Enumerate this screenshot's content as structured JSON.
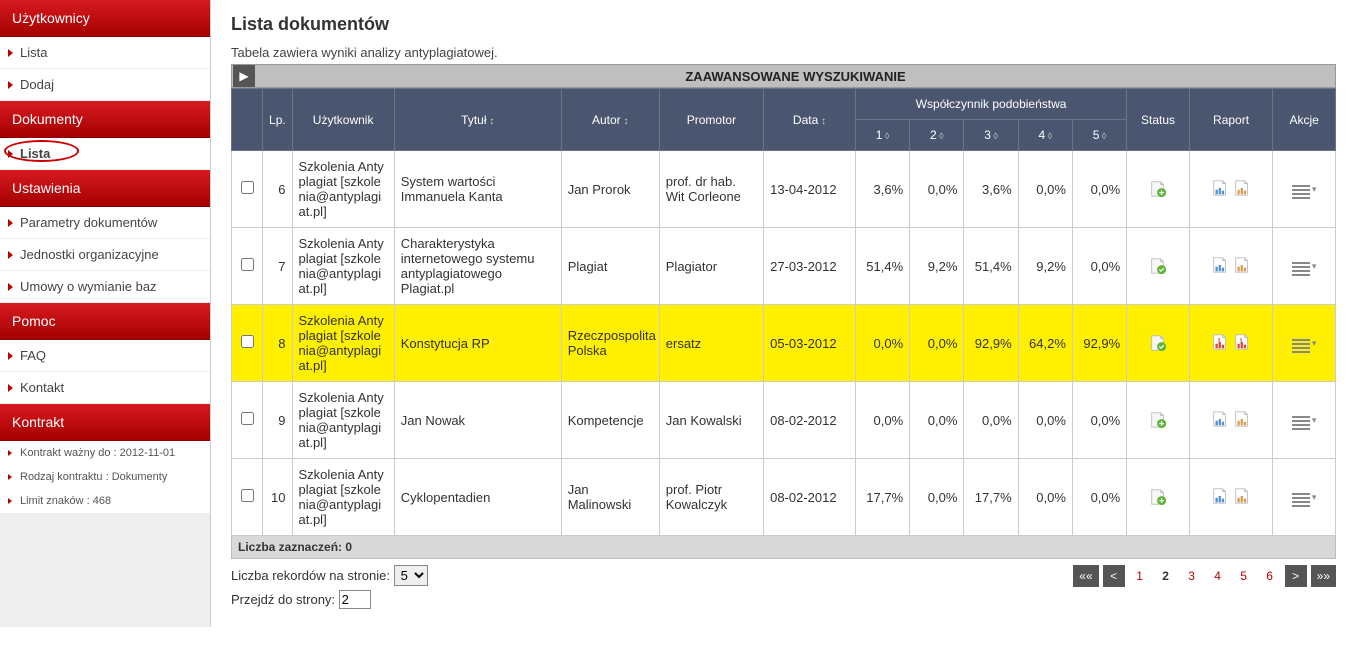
{
  "sidebar": {
    "sections": [
      {
        "header": "Użytkownicy",
        "items": [
          {
            "label": "Lista"
          },
          {
            "label": "Dodaj"
          }
        ]
      },
      {
        "header": "Dokumenty",
        "items": [
          {
            "label": "Lista",
            "selected": true
          }
        ]
      },
      {
        "header": "Ustawienia",
        "items": [
          {
            "label": "Parametry dokumentów"
          },
          {
            "label": "Jednostki organizacyjne"
          },
          {
            "label": "Umowy o wymianie baz"
          }
        ]
      },
      {
        "header": "Pomoc",
        "items": [
          {
            "label": "FAQ"
          },
          {
            "label": "Kontakt"
          }
        ]
      },
      {
        "header": "Kontrakt",
        "info": [
          "Kontrakt ważny do : 2012-11-01",
          "Rodzaj kontraktu : Dokumenty",
          "Limit znaków : 468"
        ]
      }
    ]
  },
  "page": {
    "title": "Lista dokumentów",
    "subtitle": "Tabela zawiera wyniki analizy antyplagiatowej.",
    "advanced_search": "ZAAWANSOWANE WYSZUKIWANIE"
  },
  "table": {
    "columns": {
      "lp": "Lp.",
      "user": "Użytkownik",
      "title": "Tytuł",
      "author": "Autor",
      "promoter": "Promotor",
      "date": "Data",
      "coef_group": "Współczynnik podobieństwa",
      "coef": [
        "1",
        "2",
        "3",
        "4",
        "5"
      ],
      "status": "Status",
      "report": "Raport",
      "actions": "Akcje"
    },
    "rows": [
      {
        "lp": "6",
        "user": "Szkolenia Antyplagiat [szkolenia@antyplagiat.pl]",
        "title": "System wartości Immanuela Kanta",
        "author": "Jan Prorok",
        "promoter": "prof. dr hab. Wit Corleone",
        "date": "13-04-2012",
        "c": [
          "3,6%",
          "0,0%",
          "3,6%",
          "0,0%",
          "0,0%"
        ],
        "status": "add",
        "report": "normal",
        "hl": false
      },
      {
        "lp": "7",
        "user": "Szkolenia Antyplagiat [szkolenia@antyplagiat.pl]",
        "title": "Charakterystyka internetowego systemu antyplagiatowego Plagiat.pl",
        "author": "Plagiat",
        "promoter": "Plagiator",
        "date": "27-03-2012",
        "c": [
          "51,4%",
          "9,2%",
          "51,4%",
          "9,2%",
          "0,0%"
        ],
        "status": "ok",
        "report": "normal",
        "hl": false
      },
      {
        "lp": "8",
        "user": "Szkolenia Antyplagiat [szkolenia@antyplagiat.pl]",
        "title": "Konstytucja RP",
        "author": "Rzeczpospolita Polska",
        "promoter": "ersatz",
        "date": "05-03-2012",
        "c": [
          "0,0%",
          "0,0%",
          "92,9%",
          "64,2%",
          "92,9%"
        ],
        "status": "ok",
        "report": "alert",
        "hl": true
      },
      {
        "lp": "9",
        "user": "Szkolenia Antyplagiat [szkolenia@antyplagiat.pl]",
        "title": "Jan Nowak",
        "author": "Kompetencje",
        "promoter": "Jan Kowalski",
        "date": "08-02-2012",
        "c": [
          "0,0%",
          "0,0%",
          "0,0%",
          "0,0%",
          "0,0%"
        ],
        "status": "add",
        "report": "normal",
        "hl": false
      },
      {
        "lp": "10",
        "user": "Szkolenia Antyplagiat [szkolenia@antyplagiat.pl]",
        "title": "Cyklopentadien",
        "author": "Jan Malinowski",
        "promoter": "prof. Piotr Kowalczyk",
        "date": "08-02-2012",
        "c": [
          "17,7%",
          "0,0%",
          "17,7%",
          "0,0%",
          "0,0%"
        ],
        "status": "add",
        "report": "normal",
        "hl": false
      }
    ],
    "summary": "Liczba zaznaczeń: 0"
  },
  "footer": {
    "records_label": "Liczba rekordów na stronie:",
    "records_value": "5",
    "goto_label": "Przejdź do strony:",
    "goto_value": "2",
    "pager": {
      "first": "««",
      "prev": "<",
      "pages": [
        "1",
        "2",
        "3",
        "4",
        "5",
        "6"
      ],
      "current": "2",
      "next": ">",
      "last": "»»"
    }
  },
  "colors": {
    "header_bg": "#4a5670",
    "highlight": "#fff000",
    "sidebar_red": "#c00d15"
  }
}
